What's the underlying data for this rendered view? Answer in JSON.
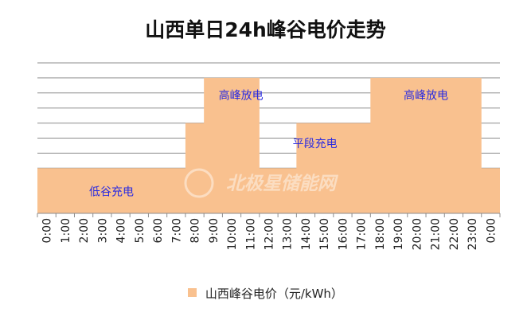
{
  "chart_data": {
    "type": "area",
    "title": "山西单日24h峰谷电价走势",
    "categories": [
      "0:00",
      "1:00",
      "2:00",
      "3:00",
      "4:00",
      "5:00",
      "6:00",
      "7:00",
      "8:00",
      "9:00",
      "10:00",
      "11:00",
      "12:00",
      "13:00",
      "14:00",
      "15:00",
      "16:00",
      "17:00",
      "18:00",
      "19:00",
      "20:00",
      "21:00",
      "22:00",
      "23:00",
      "0:00"
    ],
    "series": [
      {
        "name": "山西峰谷电价（元/kWh）",
        "color": "#f9c18f",
        "step": "post",
        "values": [
          3,
          3,
          3,
          3,
          3,
          3,
          3,
          3,
          6,
          9,
          9,
          9,
          3,
          3,
          6,
          6,
          6,
          6,
          9,
          9,
          9,
          9,
          9,
          9,
          3
        ]
      }
    ],
    "ylim": [
      0,
      10
    ],
    "grid": true,
    "legend_position": "bottom",
    "annotations": [
      {
        "text": "低谷充电",
        "x": "4:00",
        "y": 1.2
      },
      {
        "text": "高峰放电",
        "x": "11:00",
        "y": 7.6
      },
      {
        "text": "平段充电",
        "x": "15:00",
        "y": 4.4
      },
      {
        "text": "高峰放电",
        "x": "21:00",
        "y": 7.6
      }
    ],
    "watermark": "北极星储能网"
  }
}
